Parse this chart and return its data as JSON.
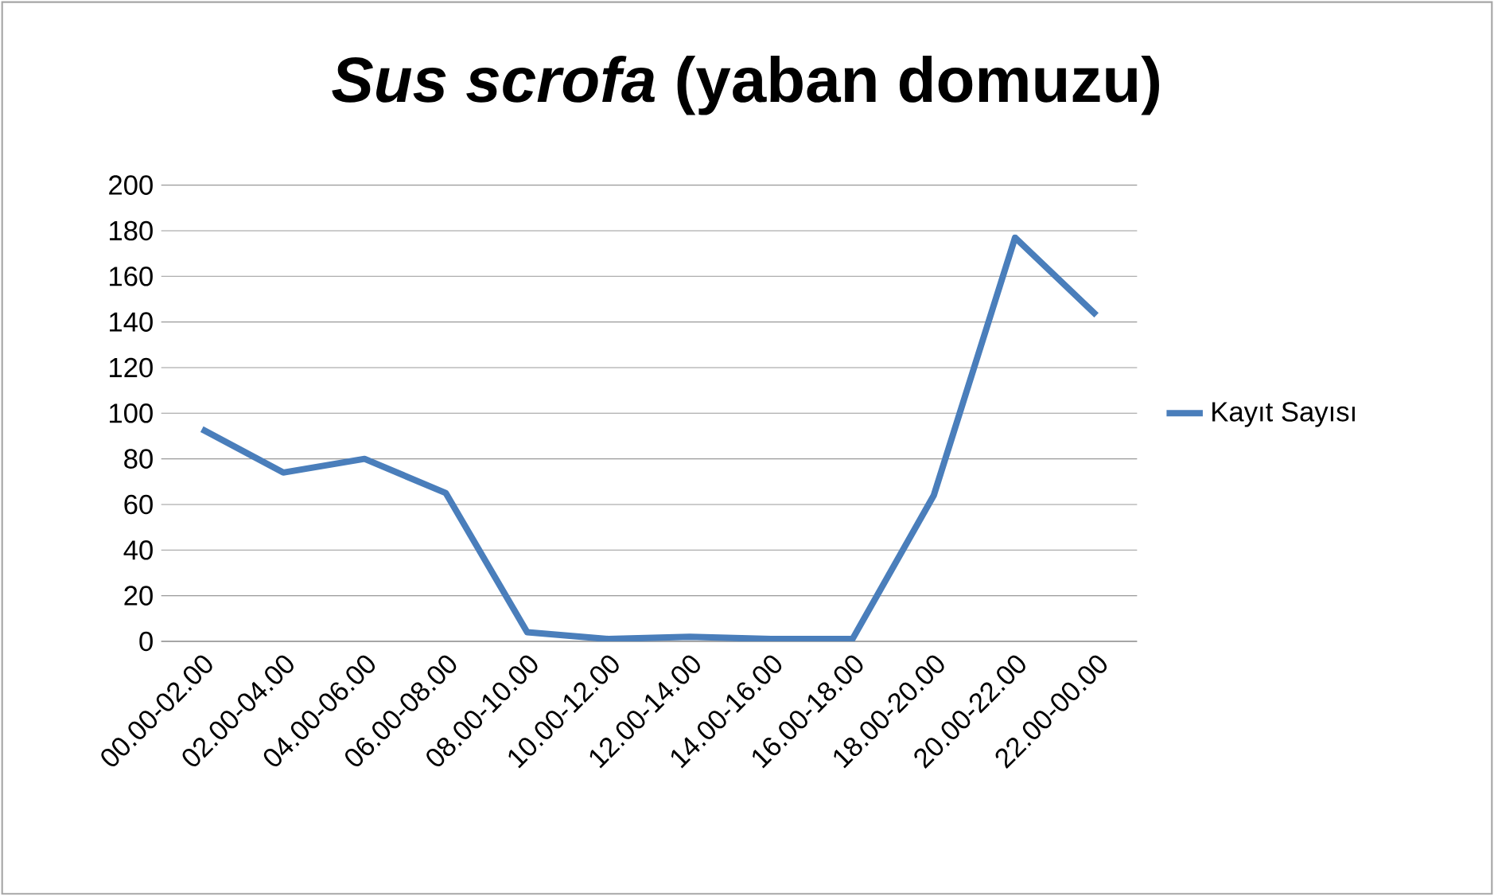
{
  "chart_data": {
    "type": "line",
    "title": "*Sus scrofa* (yaban domuzu)",
    "categories": [
      "00.00-02.00",
      "02.00-04.00",
      "04.00-06.00",
      "06.00-08.00",
      "08.00-10.00",
      "10.00-12.00",
      "12.00-14.00",
      "14.00-16.00",
      "16.00-18.00",
      "18.00-20.00",
      "20.00-22.00",
      "22.00-00.00"
    ],
    "series": [
      {
        "name": "Kayıt Sayısı",
        "color": "#4a7ebb",
        "values": [
          93,
          74,
          80,
          65,
          4,
          1,
          2,
          1,
          1,
          64,
          177,
          143
        ]
      }
    ],
    "ylim": [
      0,
      200
    ],
    "yticks": [
      0,
      20,
      40,
      60,
      80,
      100,
      120,
      140,
      160,
      180,
      200
    ],
    "grid": "y",
    "legend": "right",
    "marker": "none",
    "line_style": "solid"
  }
}
